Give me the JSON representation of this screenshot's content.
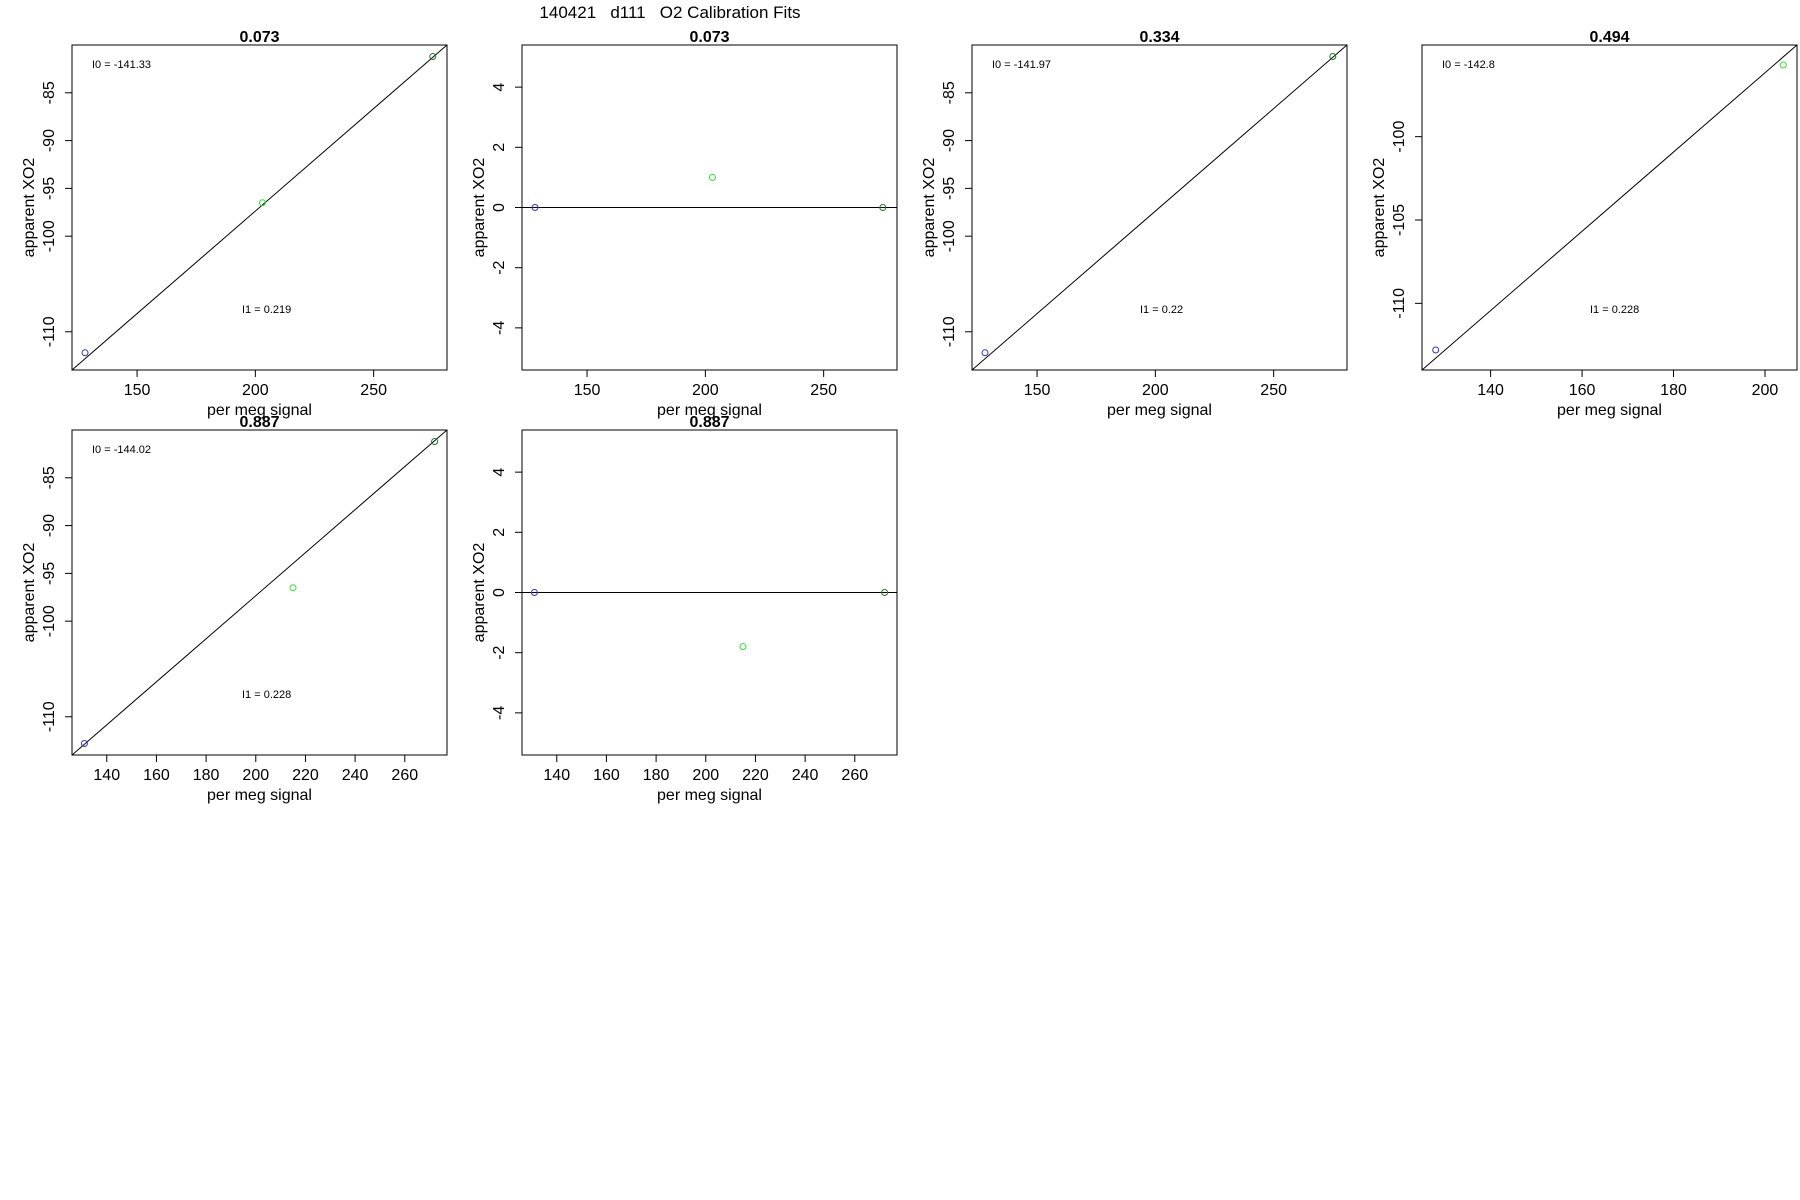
{
  "figure_title": "140421   d111   O2 Calibration Fits",
  "chart_data": [
    {
      "type": "scatter",
      "title": "0.073",
      "xlabel": "per meg signal",
      "ylabel": "apparent XO2",
      "xlim": [
        122.5,
        281
      ],
      "ylim": [
        -114,
        -80
      ],
      "xticks": [
        150,
        200,
        250
      ],
      "yticks": [
        -85,
        -90,
        -95,
        -100,
        -110
      ],
      "points": [
        {
          "x": 128,
          "y": -112.2,
          "color": "#3333cc"
        },
        {
          "x": 203,
          "y": -96.5,
          "color": "#33dd33"
        },
        {
          "x": 275,
          "y": -81.2,
          "color": "#227722"
        }
      ],
      "fit_line": [
        [
          122.5,
          -114
        ],
        [
          281,
          -80
        ]
      ],
      "annotations": [
        "I0 =  -141.33",
        "I1 =  0.219"
      ]
    },
    {
      "type": "scatter",
      "title": "0.073",
      "xlabel": "per meg signal",
      "ylabel": "apparent XO2",
      "xlim": [
        122.5,
        281
      ],
      "ylim": [
        -5.4,
        5.4
      ],
      "xticks": [
        150,
        200,
        250
      ],
      "yticks": [
        4,
        2,
        0,
        -2,
        -4
      ],
      "points": [
        {
          "x": 128,
          "y": 0,
          "color": "#3333cc"
        },
        {
          "x": 203,
          "y": 1.0,
          "color": "#33dd33"
        },
        {
          "x": 275,
          "y": 0,
          "color": "#227722"
        }
      ],
      "fit_line": [
        [
          122.5,
          0
        ],
        [
          281,
          0
        ]
      ],
      "annotations": []
    },
    {
      "type": "scatter",
      "title": "0.334",
      "xlabel": "per meg signal",
      "ylabel": "apparent XO2",
      "xlim": [
        122.5,
        281
      ],
      "ylim": [
        -114,
        -80
      ],
      "xticks": [
        150,
        200,
        250
      ],
      "yticks": [
        -85,
        -90,
        -95,
        -100,
        -110
      ],
      "points": [
        {
          "x": 128,
          "y": -112.2,
          "color": "#3333cc"
        },
        {
          "x": 275,
          "y": -81.2,
          "color": "#227722"
        }
      ],
      "fit_line": [
        [
          122.5,
          -114
        ],
        [
          281,
          -80
        ]
      ],
      "annotations": [
        "I0 =  -141.97",
        "I1 =  0.22"
      ]
    },
    {
      "type": "scatter",
      "title": "0.494",
      "xlabel": "per meg signal",
      "ylabel": "apparent XO2",
      "xlim": [
        125,
        207
      ],
      "ylim": [
        -114,
        -94.5
      ],
      "xticks": [
        140,
        160,
        180,
        200
      ],
      "yticks": [
        -100,
        -105,
        -110
      ],
      "points": [
        {
          "x": 128,
          "y": -112.8,
          "color": "#3333cc"
        },
        {
          "x": 204,
          "y": -95.7,
          "color": "#33dd33"
        }
      ],
      "fit_line": [
        [
          125,
          -114
        ],
        [
          207,
          -94.5
        ]
      ],
      "annotations": [
        "I0 =  -142.8",
        "I1 =  0.228"
      ]
    },
    {
      "type": "scatter",
      "title": "0.887",
      "xlabel": "per meg signal",
      "ylabel": "apparent XO2",
      "xlim": [
        126,
        277
      ],
      "ylim": [
        -114,
        -80
      ],
      "xticks": [
        140,
        160,
        180,
        200,
        220,
        240,
        260
      ],
      "yticks": [
        -85,
        -90,
        -95,
        -100,
        -110
      ],
      "points": [
        {
          "x": 131,
          "y": -112.8,
          "color": "#3333cc"
        },
        {
          "x": 215,
          "y": -96.5,
          "color": "#33dd33"
        },
        {
          "x": 272,
          "y": -81.2,
          "color": "#227722"
        }
      ],
      "fit_line": [
        [
          126,
          -114
        ],
        [
          277,
          -80
        ]
      ],
      "annotations": [
        "I0 =  -144.02",
        "I1 =  0.228"
      ]
    },
    {
      "type": "scatter",
      "title": "0.887",
      "xlabel": "per meg signal",
      "ylabel": "apparent XO2",
      "xlim": [
        126,
        277
      ],
      "ylim": [
        -5.4,
        5.4
      ],
      "xticks": [
        140,
        160,
        180,
        200,
        220,
        240,
        260
      ],
      "yticks": [
        4,
        2,
        0,
        -2,
        -4
      ],
      "points": [
        {
          "x": 131,
          "y": 0,
          "color": "#3333cc"
        },
        {
          "x": 215,
          "y": -1.8,
          "color": "#33dd33"
        },
        {
          "x": 272,
          "y": 0,
          "color": "#227722"
        }
      ],
      "fit_line": [
        [
          126,
          0
        ],
        [
          277,
          0
        ]
      ],
      "annotations": []
    }
  ]
}
